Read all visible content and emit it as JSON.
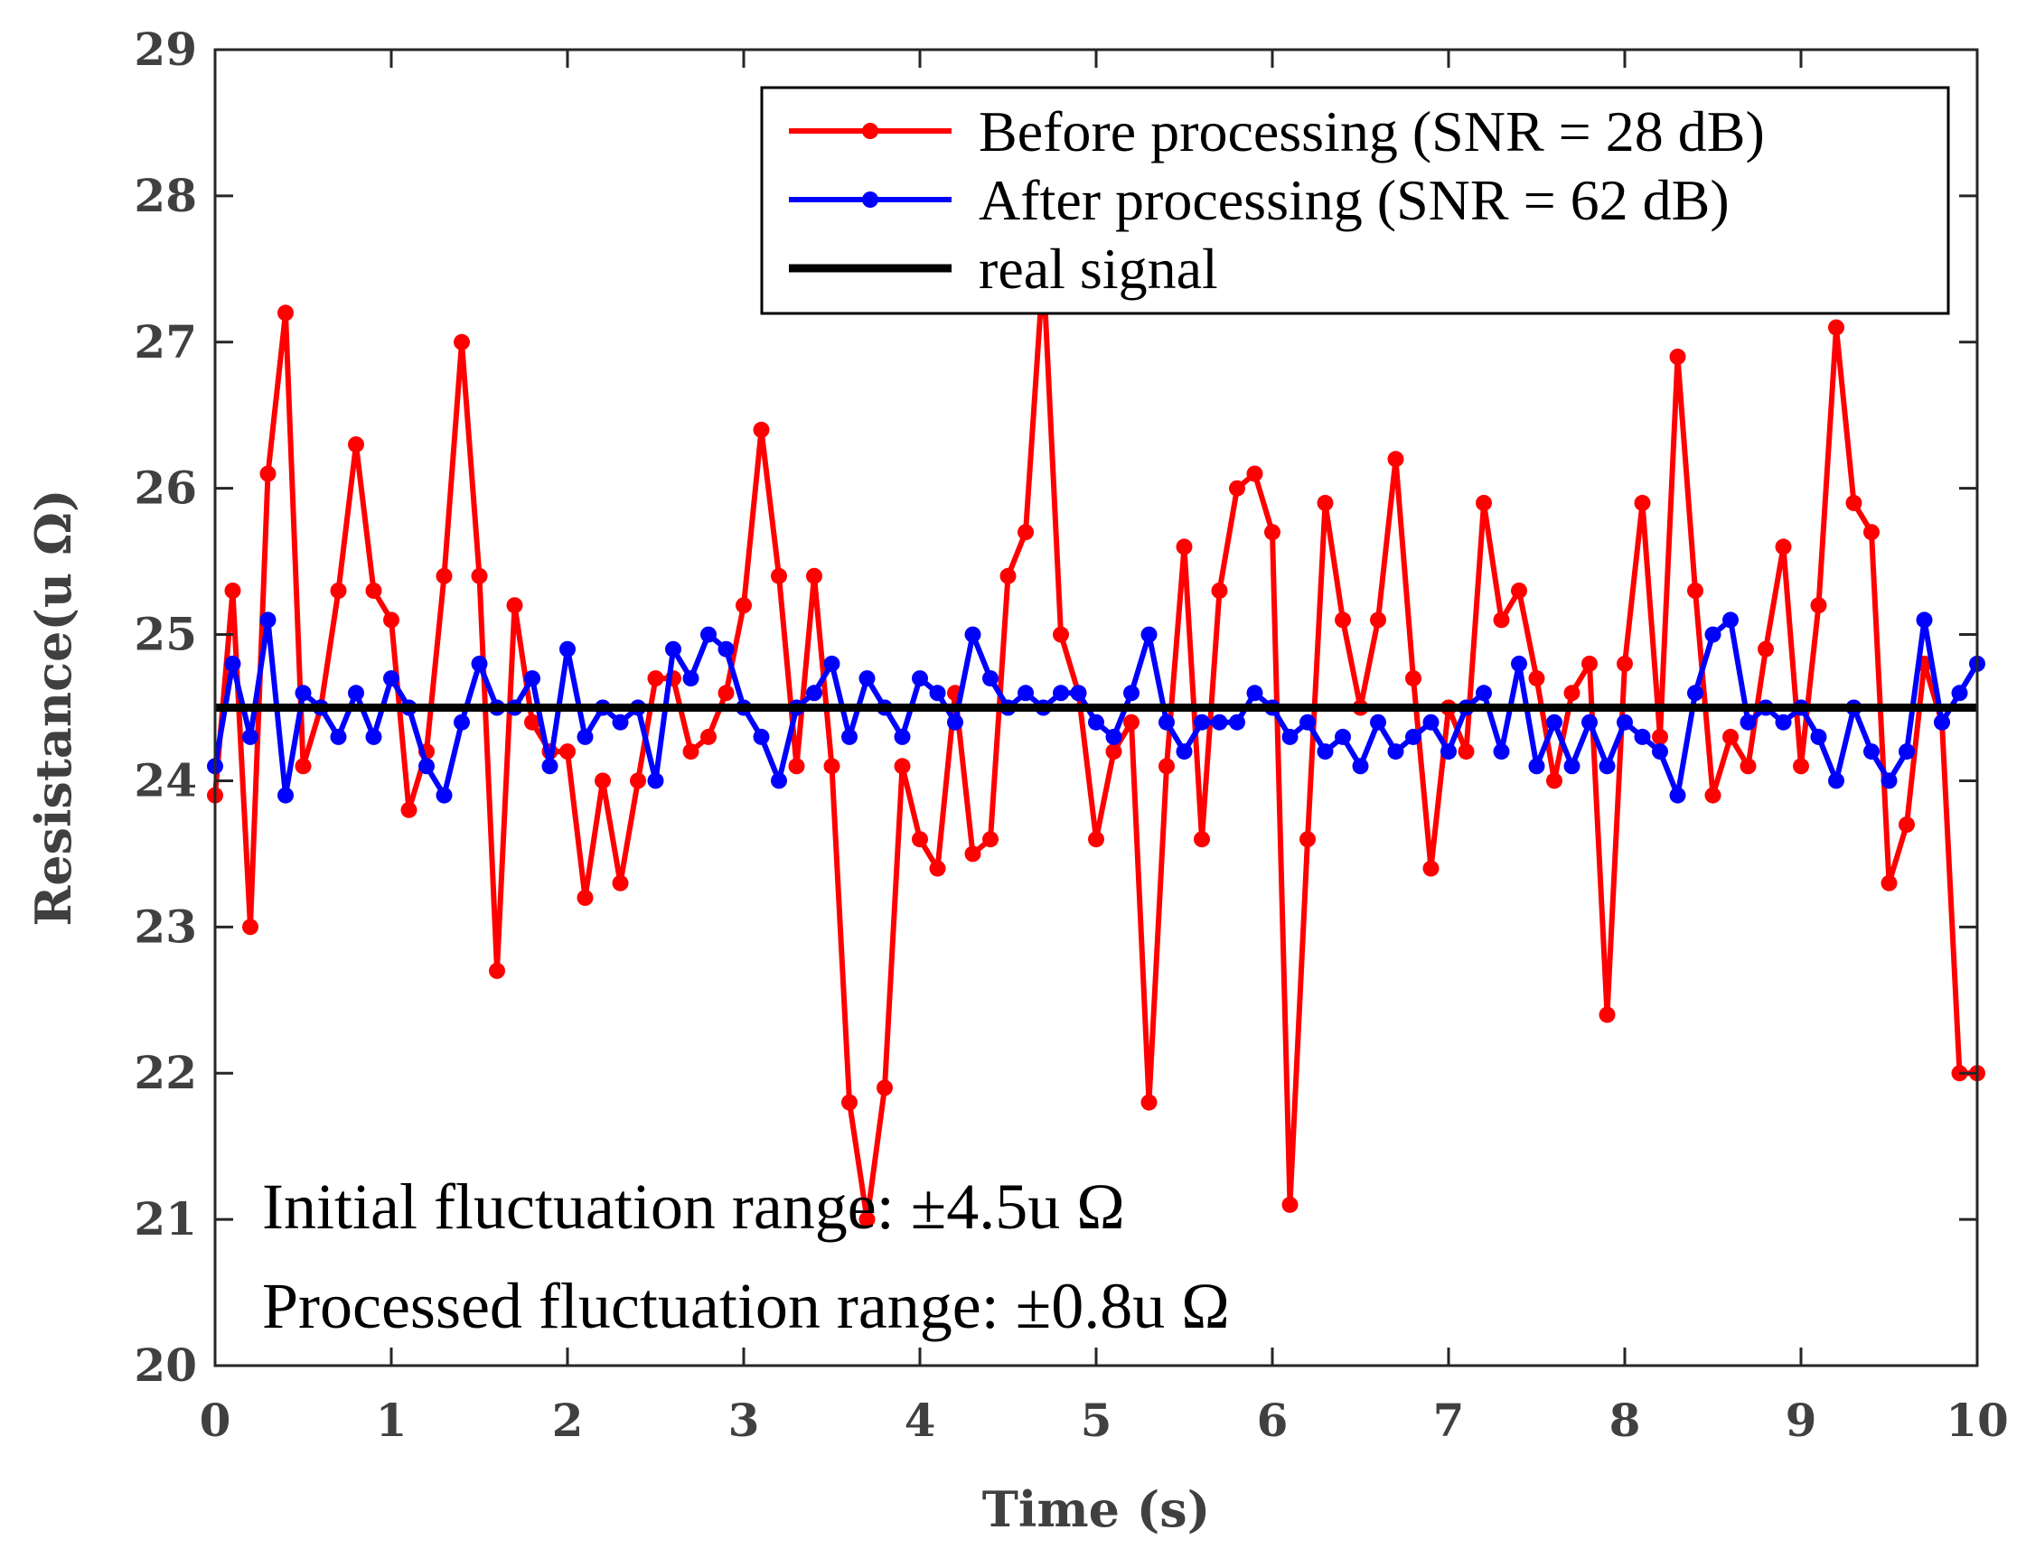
{
  "chart_data": {
    "type": "line",
    "title": "",
    "xlabel": "Time (s)",
    "ylabel": "Resistance(u Ω)",
    "xlim": [
      0,
      10
    ],
    "ylim": [
      20,
      29
    ],
    "x_ticks": [
      "0",
      "1",
      "2",
      "3",
      "4",
      "5",
      "6",
      "7",
      "8",
      "9",
      "10"
    ],
    "y_ticks": [
      "20",
      "21",
      "22",
      "23",
      "24",
      "25",
      "26",
      "27",
      "28",
      "29"
    ],
    "grid": false,
    "legend_position": "top-right",
    "x": [
      0,
      0.1,
      0.2,
      0.3,
      0.4,
      0.5,
      0.6,
      0.7,
      0.8,
      0.9,
      1.0,
      1.1,
      1.2,
      1.3,
      1.4,
      1.5,
      1.6,
      1.7,
      1.8,
      1.9,
      2.0,
      2.1,
      2.2,
      2.3,
      2.4,
      2.5,
      2.6,
      2.7,
      2.8,
      2.9,
      3.0,
      3.1,
      3.2,
      3.3,
      3.4,
      3.5,
      3.6,
      3.7,
      3.8,
      3.9,
      4.0,
      4.1,
      4.2,
      4.3,
      4.4,
      4.5,
      4.6,
      4.7,
      4.8,
      4.9,
      5.0,
      5.1,
      5.2,
      5.3,
      5.4,
      5.5,
      5.6,
      5.7,
      5.8,
      5.9,
      6.0,
      6.1,
      6.2,
      6.3,
      6.4,
      6.5,
      6.6,
      6.7,
      6.8,
      6.9,
      7.0,
      7.1,
      7.2,
      7.3,
      7.4,
      7.5,
      7.6,
      7.7,
      7.8,
      7.9,
      8.0,
      8.1,
      8.2,
      8.3,
      8.4,
      8.5,
      8.6,
      8.7,
      8.8,
      8.9,
      9.0,
      9.1,
      9.2,
      9.3,
      9.4,
      9.5,
      9.6,
      9.7,
      9.8,
      9.9,
      10.0
    ],
    "series": [
      {
        "name": "Before processing (SNR = 28 dB)",
        "color": "#ff0000",
        "values": [
          23.9,
          25.3,
          23.0,
          26.1,
          27.2,
          24.1,
          24.5,
          25.3,
          26.3,
          25.3,
          25.1,
          23.8,
          24.2,
          25.4,
          27.0,
          25.4,
          22.7,
          25.2,
          24.4,
          24.2,
          24.2,
          23.2,
          24.0,
          23.3,
          24.0,
          24.7,
          24.7,
          24.2,
          24.3,
          24.6,
          25.2,
          26.4,
          25.4,
          24.1,
          25.4,
          24.1,
          21.8,
          21.0,
          21.9,
          24.1,
          23.6,
          23.4,
          24.6,
          23.5,
          23.6,
          25.4,
          25.7,
          27.5,
          25.0,
          24.6,
          23.6,
          24.2,
          24.4,
          21.8,
          24.1,
          25.6,
          23.6,
          25.3,
          26.0,
          26.1,
          25.7,
          21.1,
          23.6,
          25.9,
          25.1,
          24.5,
          25.1,
          26.2,
          24.7,
          23.4,
          24.5,
          24.2,
          25.9,
          25.1,
          25.3,
          24.7,
          24.0,
          24.6,
          24.8,
          22.4,
          24.8,
          25.9,
          24.3,
          26.9,
          25.3,
          23.9,
          24.3,
          24.1,
          24.9,
          25.6,
          24.1,
          25.2,
          27.1,
          25.9,
          25.7,
          23.3,
          23.7,
          24.8,
          24.4,
          22.0,
          22.0
        ]
      },
      {
        "name": "After processing (SNR = 62 dB)",
        "color": "#0000ff",
        "values": [
          24.1,
          24.8,
          24.3,
          25.1,
          23.9,
          24.6,
          24.5,
          24.3,
          24.6,
          24.3,
          24.7,
          24.5,
          24.1,
          23.9,
          24.4,
          24.8,
          24.5,
          24.5,
          24.7,
          24.1,
          24.9,
          24.3,
          24.5,
          24.4,
          24.5,
          24.0,
          24.9,
          24.7,
          25.0,
          24.9,
          24.5,
          24.3,
          24.0,
          24.5,
          24.6,
          24.8,
          24.3,
          24.7,
          24.5,
          24.3,
          24.7,
          24.6,
          24.4,
          25.0,
          24.7,
          24.5,
          24.6,
          24.5,
          24.6,
          24.6,
          24.4,
          24.3,
          24.6,
          25.0,
          24.4,
          24.2,
          24.4,
          24.4,
          24.4,
          24.6,
          24.5,
          24.3,
          24.4,
          24.2,
          24.3,
          24.1,
          24.4,
          24.2,
          24.3,
          24.4,
          24.2,
          24.5,
          24.6,
          24.2,
          24.8,
          24.1,
          24.4,
          24.1,
          24.4,
          24.1,
          24.4,
          24.3,
          24.2,
          23.9,
          24.6,
          25.0,
          25.1,
          24.4,
          24.5,
          24.4,
          24.5,
          24.3,
          24.0,
          24.5,
          24.2,
          24.0,
          24.2,
          25.1,
          24.4,
          24.6,
          24.8
        ]
      },
      {
        "name": "real signal",
        "color": "#000000",
        "constant": 24.5
      }
    ],
    "annotations": [
      "Initial fluctuation range: ±4.5u Ω",
      "Processed fluctuation range: ±0.8u Ω"
    ]
  }
}
